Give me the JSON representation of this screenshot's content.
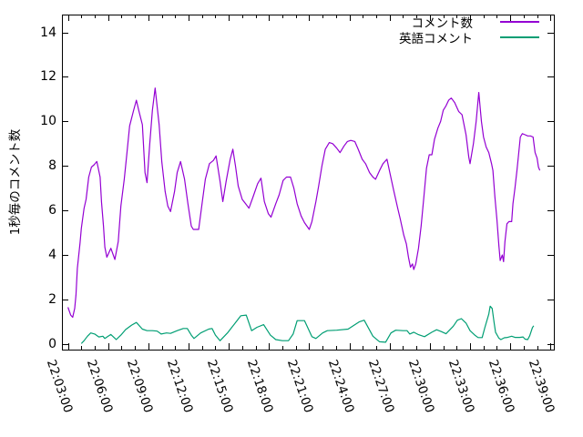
{
  "window": {
    "background": "#ffffff",
    "foreground": "#000000"
  },
  "chart_data": {
    "type": "line",
    "title": "",
    "xlabel": "",
    "ylabel": "1秒毎のコメント数",
    "grid": false,
    "x_axis": {
      "unit": "time (HH:MM:SS), stored as minutes after 22:00",
      "range_minutes": [
        2.55,
        39.25
      ],
      "tick_minutes": [
        3,
        6,
        9,
        12,
        15,
        18,
        21,
        24,
        27,
        30,
        33,
        36,
        39
      ],
      "tick_labels": [
        "22:03:00",
        "22:06:00",
        "22:09:00",
        "22:12:00",
        "22:15:00",
        "22:18:00",
        "22:21:00",
        "22:24:00",
        "22:27:00",
        "22:30:00",
        "22:33:00",
        "22:36:00",
        "22:39:00"
      ],
      "minor_tick_every_minutes": 1
    },
    "y_axis": {
      "range": [
        -0.25,
        14.8
      ],
      "ticks": [
        0,
        2,
        4,
        6,
        8,
        10,
        12,
        14
      ]
    },
    "legend": {
      "position": "top-right-inside",
      "entries": [
        {
          "label": "コメント数",
          "color": "#9400D3"
        },
        {
          "label": "英語コメント",
          "color": "#009E73"
        }
      ]
    },
    "series": [
      {
        "name": "コメント数",
        "color": "#9400D3",
        "points": [
          [
            3.0,
            1.65
          ],
          [
            3.2,
            1.3
          ],
          [
            3.35,
            1.2
          ],
          [
            3.5,
            1.6
          ],
          [
            3.6,
            2.2
          ],
          [
            3.7,
            3.4
          ],
          [
            3.9,
            4.55
          ],
          [
            4.0,
            5.2
          ],
          [
            4.2,
            6.1
          ],
          [
            4.35,
            6.5
          ],
          [
            4.55,
            7.5
          ],
          [
            4.75,
            7.95
          ],
          [
            4.95,
            8.05
          ],
          [
            5.15,
            8.2
          ],
          [
            5.4,
            7.5
          ],
          [
            5.5,
            6.4
          ],
          [
            5.65,
            5.3
          ],
          [
            5.75,
            4.35
          ],
          [
            5.9,
            3.9
          ],
          [
            6.2,
            4.3
          ],
          [
            6.5,
            3.8
          ],
          [
            6.75,
            4.6
          ],
          [
            6.95,
            6.2
          ],
          [
            7.2,
            7.4
          ],
          [
            7.4,
            8.6
          ],
          [
            7.6,
            9.8
          ],
          [
            7.9,
            10.5
          ],
          [
            8.1,
            10.95
          ],
          [
            8.3,
            10.45
          ],
          [
            8.55,
            9.85
          ],
          [
            8.75,
            7.7
          ],
          [
            8.9,
            7.25
          ],
          [
            9.1,
            9.0
          ],
          [
            9.3,
            10.5
          ],
          [
            9.5,
            11.5
          ],
          [
            9.8,
            9.85
          ],
          [
            10.0,
            8.2
          ],
          [
            10.25,
            6.85
          ],
          [
            10.45,
            6.2
          ],
          [
            10.65,
            5.95
          ],
          [
            10.95,
            6.85
          ],
          [
            11.15,
            7.7
          ],
          [
            11.4,
            8.2
          ],
          [
            11.7,
            7.4
          ],
          [
            11.95,
            6.3
          ],
          [
            12.2,
            5.3
          ],
          [
            12.35,
            5.15
          ],
          [
            12.75,
            5.15
          ],
          [
            13.0,
            6.3
          ],
          [
            13.25,
            7.4
          ],
          [
            13.55,
            8.1
          ],
          [
            13.85,
            8.25
          ],
          [
            14.05,
            8.45
          ],
          [
            14.35,
            7.3
          ],
          [
            14.55,
            6.4
          ],
          [
            14.8,
            7.3
          ],
          [
            15.1,
            8.3
          ],
          [
            15.3,
            8.75
          ],
          [
            15.5,
            8.0
          ],
          [
            15.7,
            7.1
          ],
          [
            16.0,
            6.5
          ],
          [
            16.25,
            6.3
          ],
          [
            16.5,
            6.1
          ],
          [
            16.8,
            6.6
          ],
          [
            17.15,
            7.2
          ],
          [
            17.4,
            7.45
          ],
          [
            17.65,
            6.4
          ],
          [
            17.95,
            5.85
          ],
          [
            18.15,
            5.7
          ],
          [
            18.5,
            6.3
          ],
          [
            18.75,
            6.7
          ],
          [
            19.05,
            7.35
          ],
          [
            19.3,
            7.5
          ],
          [
            19.6,
            7.5
          ],
          [
            19.85,
            7.0
          ],
          [
            20.1,
            6.3
          ],
          [
            20.4,
            5.75
          ],
          [
            20.65,
            5.45
          ],
          [
            21.0,
            5.15
          ],
          [
            21.2,
            5.5
          ],
          [
            21.5,
            6.4
          ],
          [
            21.7,
            7.1
          ],
          [
            21.95,
            8.0
          ],
          [
            22.2,
            8.75
          ],
          [
            22.5,
            9.05
          ],
          [
            22.75,
            9.0
          ],
          [
            23.05,
            8.8
          ],
          [
            23.3,
            8.6
          ],
          [
            23.6,
            8.9
          ],
          [
            23.85,
            9.1
          ],
          [
            24.1,
            9.15
          ],
          [
            24.4,
            9.1
          ],
          [
            24.65,
            8.75
          ],
          [
            24.95,
            8.3
          ],
          [
            25.2,
            8.1
          ],
          [
            25.5,
            7.7
          ],
          [
            25.75,
            7.5
          ],
          [
            25.95,
            7.4
          ],
          [
            26.25,
            7.8
          ],
          [
            26.5,
            8.1
          ],
          [
            26.8,
            8.3
          ],
          [
            27.05,
            7.6
          ],
          [
            27.3,
            6.9
          ],
          [
            27.6,
            6.1
          ],
          [
            27.8,
            5.6
          ],
          [
            28.05,
            4.9
          ],
          [
            28.25,
            4.5
          ],
          [
            28.4,
            3.9
          ],
          [
            28.55,
            3.45
          ],
          [
            28.7,
            3.6
          ],
          [
            28.8,
            3.35
          ],
          [
            28.95,
            3.6
          ],
          [
            29.15,
            4.3
          ],
          [
            29.35,
            5.3
          ],
          [
            29.55,
            6.6
          ],
          [
            29.75,
            7.9
          ],
          [
            29.95,
            8.5
          ],
          [
            30.15,
            8.5
          ],
          [
            30.35,
            9.2
          ],
          [
            30.6,
            9.7
          ],
          [
            30.8,
            10.0
          ],
          [
            31.0,
            10.5
          ],
          [
            31.2,
            10.7
          ],
          [
            31.4,
            10.95
          ],
          [
            31.6,
            11.05
          ],
          [
            31.85,
            10.85
          ],
          [
            32.15,
            10.45
          ],
          [
            32.4,
            10.3
          ],
          [
            32.7,
            9.4
          ],
          [
            32.9,
            8.4
          ],
          [
            33.0,
            8.1
          ],
          [
            33.25,
            9.0
          ],
          [
            33.45,
            10.0
          ],
          [
            33.65,
            11.3
          ],
          [
            33.85,
            10.0
          ],
          [
            34.0,
            9.3
          ],
          [
            34.2,
            8.85
          ],
          [
            34.4,
            8.6
          ],
          [
            34.6,
            8.1
          ],
          [
            34.7,
            7.8
          ],
          [
            34.85,
            6.6
          ],
          [
            35.0,
            5.6
          ],
          [
            35.15,
            4.4
          ],
          [
            35.25,
            3.75
          ],
          [
            35.4,
            4.0
          ],
          [
            35.5,
            3.7
          ],
          [
            35.6,
            4.6
          ],
          [
            35.75,
            5.4
          ],
          [
            35.9,
            5.5
          ],
          [
            36.1,
            5.5
          ],
          [
            36.2,
            6.3
          ],
          [
            36.35,
            7.0
          ],
          [
            36.5,
            7.8
          ],
          [
            36.6,
            8.4
          ],
          [
            36.75,
            9.3
          ],
          [
            36.9,
            9.45
          ],
          [
            37.1,
            9.4
          ],
          [
            37.3,
            9.35
          ],
          [
            37.5,
            9.35
          ],
          [
            37.7,
            9.3
          ],
          [
            37.85,
            8.6
          ],
          [
            38.0,
            8.35
          ],
          [
            38.1,
            7.95
          ],
          [
            38.2,
            7.8
          ]
        ]
      },
      {
        "name": "英語コメント",
        "color": "#009E73",
        "points": [
          [
            4.0,
            0.02
          ],
          [
            4.2,
            0.15
          ],
          [
            4.45,
            0.35
          ],
          [
            4.7,
            0.5
          ],
          [
            5.0,
            0.45
          ],
          [
            5.3,
            0.32
          ],
          [
            5.6,
            0.35
          ],
          [
            5.75,
            0.25
          ],
          [
            6.0,
            0.35
          ],
          [
            6.2,
            0.43
          ],
          [
            6.6,
            0.2
          ],
          [
            6.95,
            0.4
          ],
          [
            7.3,
            0.65
          ],
          [
            7.75,
            0.85
          ],
          [
            8.1,
            0.97
          ],
          [
            8.55,
            0.67
          ],
          [
            8.9,
            0.6
          ],
          [
            9.3,
            0.6
          ],
          [
            9.65,
            0.58
          ],
          [
            9.95,
            0.45
          ],
          [
            10.35,
            0.5
          ],
          [
            10.65,
            0.48
          ],
          [
            11.15,
            0.6
          ],
          [
            11.6,
            0.7
          ],
          [
            11.9,
            0.7
          ],
          [
            12.2,
            0.4
          ],
          [
            12.4,
            0.25
          ],
          [
            12.9,
            0.5
          ],
          [
            13.5,
            0.67
          ],
          [
            13.75,
            0.7
          ],
          [
            14.0,
            0.4
          ],
          [
            14.35,
            0.15
          ],
          [
            14.9,
            0.5
          ],
          [
            15.55,
            1.0
          ],
          [
            15.9,
            1.27
          ],
          [
            16.3,
            1.3
          ],
          [
            16.7,
            0.6
          ],
          [
            17.1,
            0.75
          ],
          [
            17.6,
            0.87
          ],
          [
            18.1,
            0.4
          ],
          [
            18.5,
            0.2
          ],
          [
            19.0,
            0.15
          ],
          [
            19.45,
            0.15
          ],
          [
            19.8,
            0.45
          ],
          [
            20.1,
            1.05
          ],
          [
            20.65,
            1.05
          ],
          [
            21.2,
            0.33
          ],
          [
            21.5,
            0.25
          ],
          [
            22.0,
            0.5
          ],
          [
            22.35,
            0.6
          ],
          [
            23.05,
            0.62
          ],
          [
            23.9,
            0.67
          ],
          [
            24.75,
            1.0
          ],
          [
            25.1,
            1.07
          ],
          [
            25.75,
            0.35
          ],
          [
            26.25,
            0.1
          ],
          [
            26.7,
            0.08
          ],
          [
            27.1,
            0.5
          ],
          [
            27.45,
            0.62
          ],
          [
            28.0,
            0.6
          ],
          [
            28.3,
            0.6
          ],
          [
            28.5,
            0.45
          ],
          [
            28.8,
            0.53
          ],
          [
            29.15,
            0.42
          ],
          [
            29.6,
            0.33
          ],
          [
            30.15,
            0.53
          ],
          [
            30.5,
            0.64
          ],
          [
            30.85,
            0.56
          ],
          [
            31.2,
            0.46
          ],
          [
            31.75,
            0.8
          ],
          [
            32.05,
            1.07
          ],
          [
            32.35,
            1.14
          ],
          [
            32.7,
            0.94
          ],
          [
            33.0,
            0.6
          ],
          [
            33.35,
            0.4
          ],
          [
            33.6,
            0.29
          ],
          [
            33.9,
            0.29
          ],
          [
            34.1,
            0.73
          ],
          [
            34.4,
            1.35
          ],
          [
            34.5,
            1.7
          ],
          [
            34.65,
            1.6
          ],
          [
            34.8,
            0.94
          ],
          [
            34.9,
            0.53
          ],
          [
            35.15,
            0.26
          ],
          [
            35.3,
            0.2
          ],
          [
            35.55,
            0.28
          ],
          [
            35.8,
            0.3
          ],
          [
            36.1,
            0.35
          ],
          [
            36.35,
            0.3
          ],
          [
            36.7,
            0.3
          ],
          [
            36.95,
            0.32
          ],
          [
            37.1,
            0.22
          ],
          [
            37.3,
            0.2
          ],
          [
            37.45,
            0.37
          ],
          [
            37.65,
            0.74
          ],
          [
            37.75,
            0.82
          ]
        ]
      }
    ]
  }
}
